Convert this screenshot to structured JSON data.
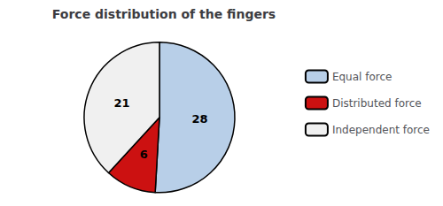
{
  "chart_data": {
    "type": "pie",
    "title": "Force distribution of the fingers",
    "categories": [
      "Equal force",
      "Distributed force",
      "Independent force"
    ],
    "values": [
      28,
      6,
      21
    ],
    "colors": [
      "#b8cfe8",
      "#cc1111",
      "#f0f0f0"
    ],
    "data_labels": true,
    "legend": "right"
  }
}
